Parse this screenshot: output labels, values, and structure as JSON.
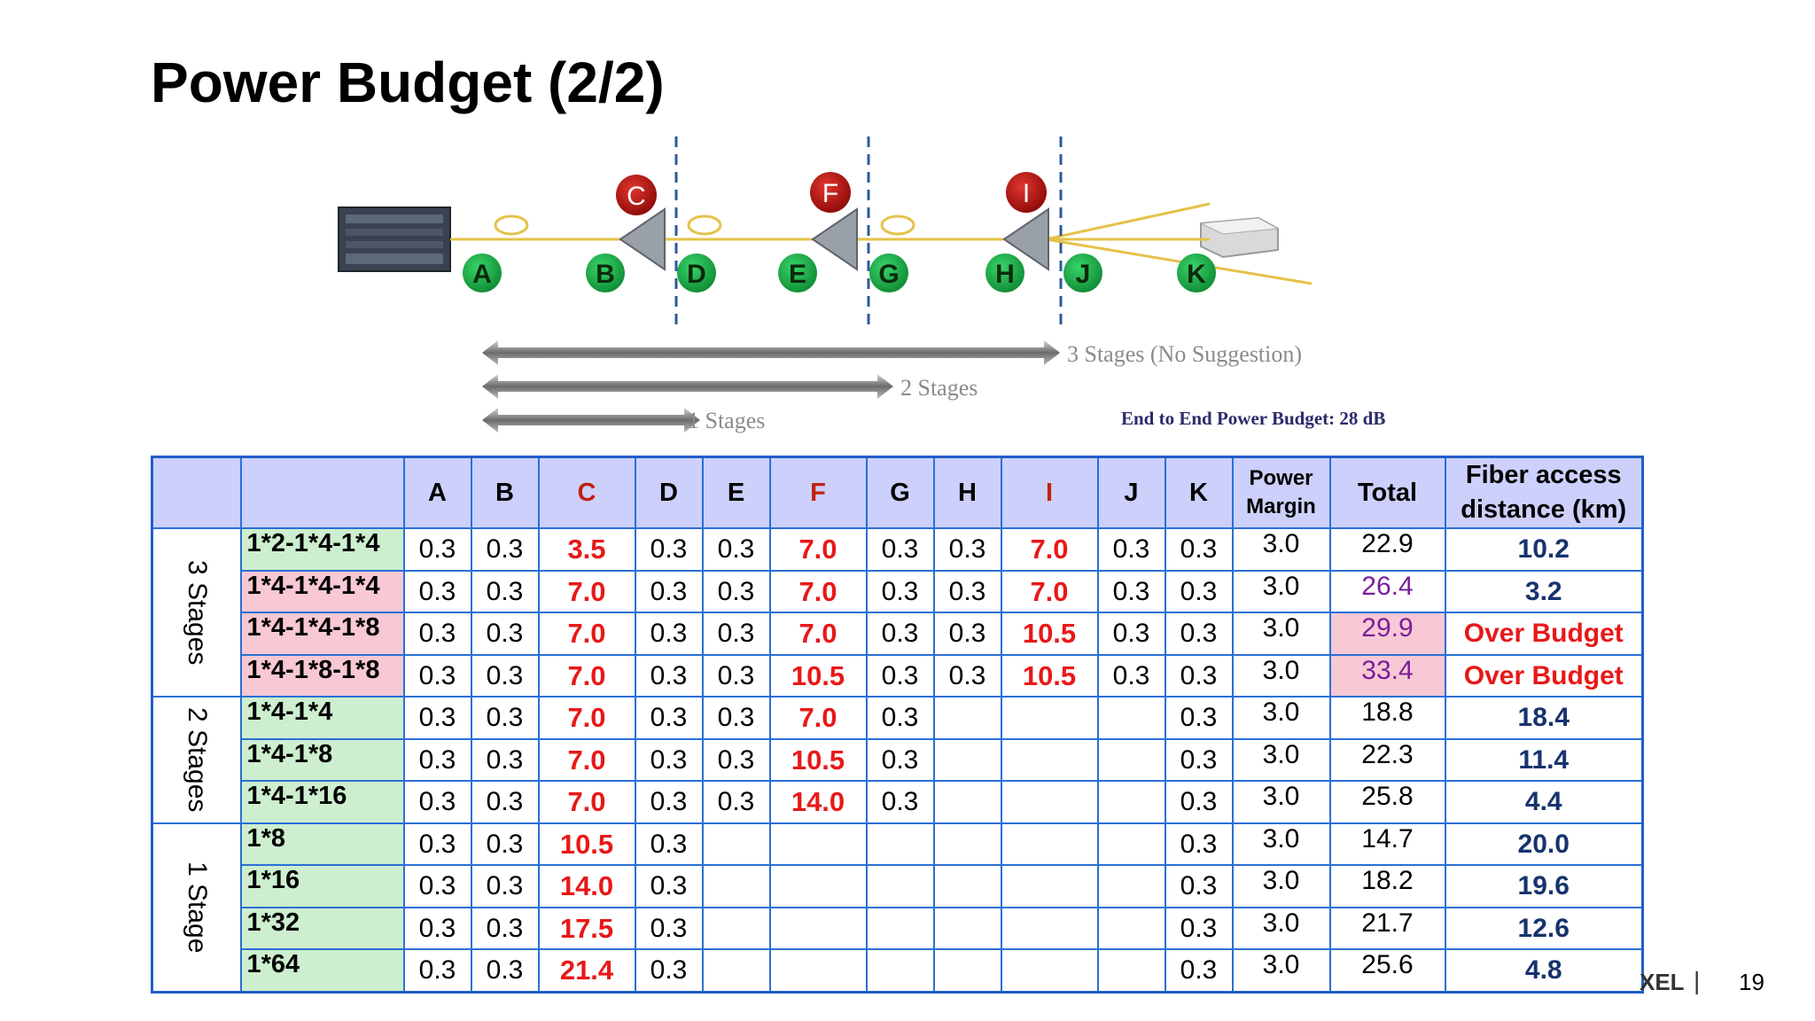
{
  "slide": {
    "title": "Power Budget (2/2)",
    "page_number": "19",
    "footer_logo_fragment": "XEL",
    "footer_separator": "|"
  },
  "diagram": {
    "nodes": [
      "A",
      "B",
      "D",
      "E",
      "G",
      "H",
      "J",
      "K"
    ],
    "splitters": [
      "C",
      "F",
      "I"
    ],
    "stage_labels": [
      "3 Stages (No Suggestion)",
      "2 Stages",
      "1 Stages"
    ],
    "end_to_end": "End to End Power Budget: 28  dB"
  },
  "table": {
    "header": [
      "",
      "",
      "A",
      "B",
      "C",
      "D",
      "E",
      "F",
      "G",
      "H",
      "I",
      "J",
      "K",
      "Power Margin",
      "Total",
      "Fiber access distance (km)"
    ],
    "header_power_margin": [
      "Power",
      "Margin"
    ],
    "header_fiber": [
      "Fiber access",
      "distance (km)"
    ],
    "groups": [
      {
        "label": "3 Stages",
        "rows": [
          {
            "config": "1*2-1*4-1*4",
            "cells": [
              "0.3",
              "0.3",
              "3.5",
              "0.3",
              "0.3",
              "7.0",
              "0.3",
              "0.3",
              "7.0",
              "0.3",
              "0.3"
            ],
            "margin": "3.0",
            "total": "22.9",
            "fiber": "10.2"
          },
          {
            "config": "1*4-1*4-1*4",
            "cells": [
              "0.3",
              "0.3",
              "7.0",
              "0.3",
              "0.3",
              "7.0",
              "0.3",
              "0.3",
              "7.0",
              "0.3",
              "0.3"
            ],
            "margin": "3.0",
            "total": "26.4",
            "fiber": "3.2"
          },
          {
            "config": "1*4-1*4-1*8",
            "cells": [
              "0.3",
              "0.3",
              "7.0",
              "0.3",
              "0.3",
              "7.0",
              "0.3",
              "0.3",
              "10.5",
              "0.3",
              "0.3"
            ],
            "margin": "3.0",
            "total": "29.9",
            "fiber": "Over Budget"
          },
          {
            "config": "1*4-1*8-1*8",
            "cells": [
              "0.3",
              "0.3",
              "7.0",
              "0.3",
              "0.3",
              "10.5",
              "0.3",
              "0.3",
              "10.5",
              "0.3",
              "0.3"
            ],
            "margin": "3.0",
            "total": "33.4",
            "fiber": "Over Budget"
          }
        ]
      },
      {
        "label": "2 Stages",
        "rows": [
          {
            "config": "1*4-1*4",
            "cells": [
              "0.3",
              "0.3",
              "7.0",
              "0.3",
              "0.3",
              "7.0",
              "0.3",
              "",
              "",
              "",
              "0.3"
            ],
            "margin": "3.0",
            "total": "18.8",
            "fiber": "18.4"
          },
          {
            "config": "1*4-1*8",
            "cells": [
              "0.3",
              "0.3",
              "7.0",
              "0.3",
              "0.3",
              "10.5",
              "0.3",
              "",
              "",
              "",
              "0.3"
            ],
            "margin": "3.0",
            "total": "22.3",
            "fiber": "11.4"
          },
          {
            "config": "1*4-1*16",
            "cells": [
              "0.3",
              "0.3",
              "7.0",
              "0.3",
              "0.3",
              "14.0",
              "0.3",
              "",
              "",
              "",
              "0.3"
            ],
            "margin": "3.0",
            "total": "25.8",
            "fiber": "4.4"
          }
        ]
      },
      {
        "label": "1 Stage",
        "rows": [
          {
            "config": "1*8",
            "cells": [
              "0.3",
              "0.3",
              "10.5",
              "0.3",
              "",
              "",
              "",
              "",
              "",
              "",
              "0.3"
            ],
            "margin": "3.0",
            "total": "14.7",
            "fiber": "20.0"
          },
          {
            "config": "1*16",
            "cells": [
              "0.3",
              "0.3",
              "14.0",
              "0.3",
              "",
              "",
              "",
              "",
              "",
              "",
              "0.3"
            ],
            "margin": "3.0",
            "total": "18.2",
            "fiber": "19.6"
          },
          {
            "config": "1*32",
            "cells": [
              "0.3",
              "0.3",
              "17.5",
              "0.3",
              "",
              "",
              "",
              "",
              "",
              "",
              "0.3"
            ],
            "margin": "3.0",
            "total": "21.7",
            "fiber": "12.6"
          },
          {
            "config": "1*64",
            "cells": [
              "0.3",
              "0.3",
              "21.4",
              "0.3",
              "",
              "",
              "",
              "",
              "",
              "",
              "0.3"
            ],
            "margin": "3.0",
            "total": "25.6",
            "fiber": "4.8"
          }
        ]
      }
    ]
  },
  "colors": {
    "header_bg": "#ccd0fa",
    "table_border": "#2a6fd6",
    "config_green_bg": "#cdeecf",
    "config_green_text": "#0f8f1c",
    "config_pink_bg": "#f8c8d4",
    "config_purple_text": "#7a1d9c",
    "splitter_loss_red": "#e81818",
    "fiber_value_navy": "#17336e",
    "node_green": "#19b047",
    "splitter_red": "#b3120e"
  }
}
